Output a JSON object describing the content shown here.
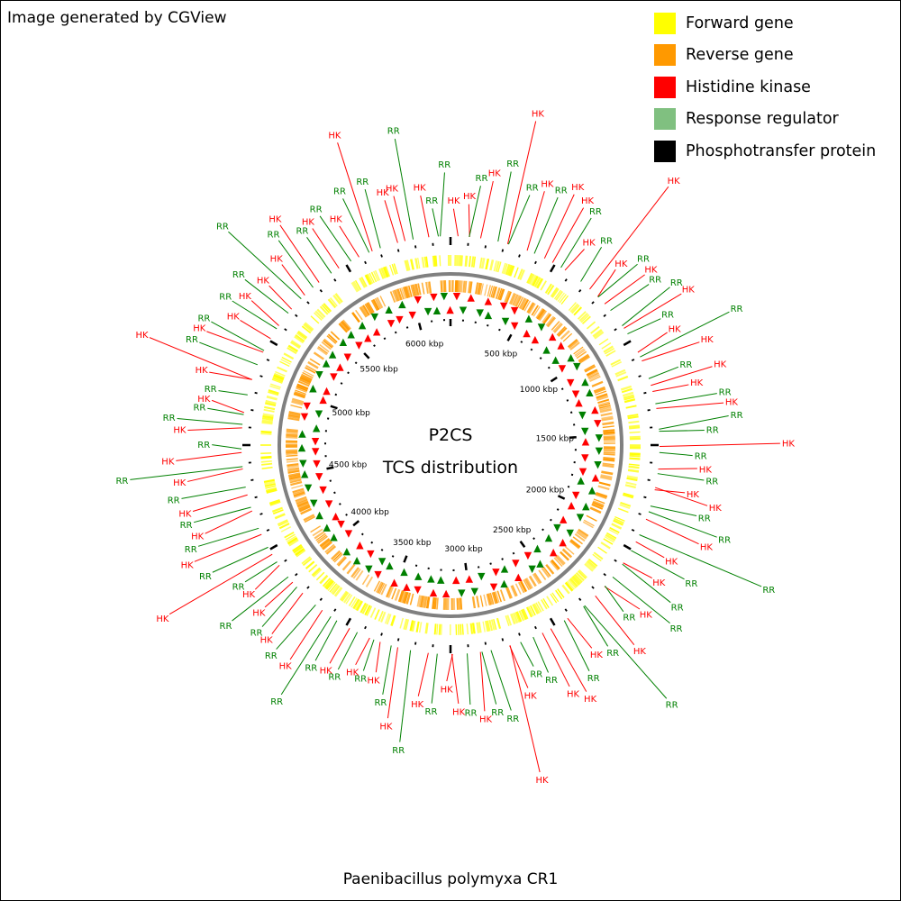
{
  "header": {
    "credit": "Image generated by CGView"
  },
  "legend": [
    {
      "label": "Forward gene",
      "color": "#ffff00"
    },
    {
      "label": "Reverse gene",
      "color": "#ff9900"
    },
    {
      "label": "Histidine kinase",
      "color": "#ff0000"
    },
    {
      "label": "Response regulator",
      "color": "#80c080"
    },
    {
      "label": "Phosphotransfer protein",
      "color": "#000000"
    }
  ],
  "map": {
    "center_title": "P2CS",
    "center_subtitle": "TCS distribution",
    "genome_size_kbp": 6250,
    "tick_labels": [
      "500 kbp",
      "1000 kbp",
      "1500 kbp",
      "2000 kbp",
      "2500 kbp",
      "3000 kbp",
      "3500 kbp",
      "4000 kbp",
      "4500 kbp",
      "5000 kbp",
      "5500 kbp",
      "6000 kbp"
    ],
    "colors": {
      "forward": "#ffff00",
      "reverse": "#ff9900",
      "hk": "#ff0000",
      "rr": "#008000",
      "backbone": "#808080",
      "tick": "#000000"
    },
    "gene_labels": [
      "RR",
      "HK",
      "HK",
      "RR",
      "HK",
      "RR",
      "RR",
      "HK",
      "HK",
      "RR",
      "HK",
      "RR",
      "HK",
      "RR",
      "HK",
      "RR",
      "HK",
      "HK",
      "RR",
      "HK",
      "RR",
      "HK",
      "HK",
      "RR",
      "HK",
      "RR",
      "RR",
      "HK",
      "RR",
      "HK",
      "RR",
      "HK",
      "RR",
      "HK",
      "HK",
      "RR",
      "HK",
      "RR",
      "RR",
      "HK",
      "RR",
      "HK",
      "RR",
      "HK",
      "HK",
      "RR",
      "RR",
      "HK",
      "RR",
      "HK",
      "RR",
      "HK",
      "RR",
      "RR",
      "HK",
      "RR",
      "HK",
      "RR",
      "RR",
      "HK",
      "RR",
      "HK",
      "HK",
      "RR",
      "RR",
      "HK",
      "HK",
      "RR",
      "RR",
      "HK",
      "RR",
      "HK",
      "HK",
      "RR",
      "HK",
      "RR",
      "HK",
      "RR",
      "HK",
      "RR",
      "HK",
      "RR",
      "HK",
      "RR",
      "RR",
      "HK",
      "RR",
      "HK",
      "RR",
      "HK",
      "RR",
      "HK",
      "RR",
      "HK",
      "RR",
      "HK",
      "RR",
      "HK",
      "RR",
      "HK",
      "RR",
      "HK",
      "RR",
      "HK",
      "RR",
      "HK",
      "RR",
      "RR",
      "HK",
      "RR",
      "HK",
      "HK",
      "RR",
      "HK",
      "RR",
      "HK",
      "RR",
      "HK",
      "RR",
      "HK",
      "RR",
      "HK",
      "RR",
      "HK",
      "RR",
      "HK",
      "RR",
      "HK",
      "RR",
      "HK"
    ]
  },
  "footer": {
    "caption": "Paenibacillus polymyxa CR1"
  }
}
